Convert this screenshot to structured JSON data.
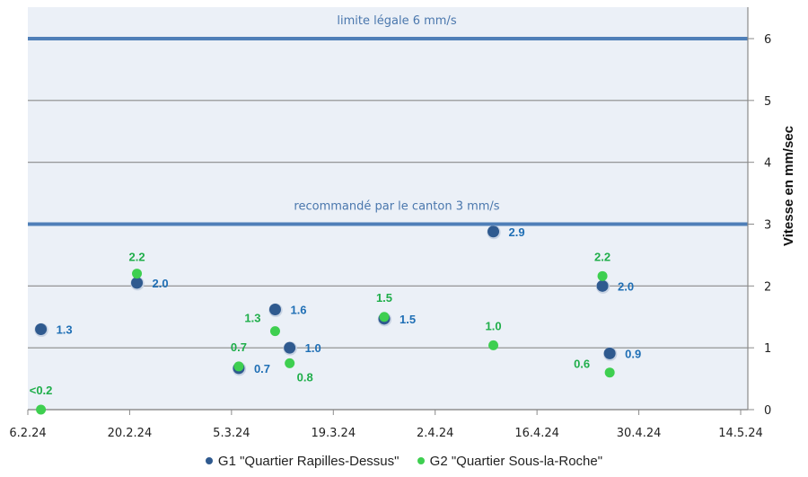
{
  "chart_data": {
    "type": "scatter",
    "title": "",
    "xlabel": "",
    "ylabel": "Vitesse en mm/sec",
    "ylim": [
      0,
      6.5
    ],
    "y_ticks": [
      "0",
      "1",
      "2",
      "3",
      "4",
      "5",
      "6"
    ],
    "x_ticks": [
      "6.2.24",
      "20.2.24",
      "5.3.24",
      "19.3.24",
      "2.4.24",
      "16.4.24",
      "30.4.24",
      "14.5.24"
    ],
    "x_range_days": [
      0,
      99
    ],
    "x_origin_date": "6.2.24",
    "grid": true,
    "legend_position": "bottom",
    "reference_lines": [
      {
        "value": 6,
        "label": "limite légale 6 mm/s"
      },
      {
        "value": 3,
        "label": "recommandé par le canton 3 mm/s"
      }
    ],
    "series": [
      {
        "name": "G1 \"Quartier Rapilles-Dessus\"",
        "color": "#2f5a8f",
        "label_color": "#1f6fb5",
        "points": [
          {
            "x_day": 1.8,
            "date": "8.2.24",
            "y": 1.3,
            "label": "1.3"
          },
          {
            "x_day": 15,
            "date": "21.2.24",
            "y": 2.05,
            "label": "2.0"
          },
          {
            "x_day": 29,
            "date": "6.3.24",
            "y": 0.67,
            "label": "0.7"
          },
          {
            "x_day": 34,
            "date": "11.3.24",
            "y": 1.62,
            "label": "1.6"
          },
          {
            "x_day": 36,
            "date": "13.3.24",
            "y": 1.0,
            "label": "1.0"
          },
          {
            "x_day": 49,
            "date": "26.3.24",
            "y": 1.47,
            "label": "1.5"
          },
          {
            "x_day": 64,
            "date": "10.4.24",
            "y": 2.88,
            "label": "2.9"
          },
          {
            "x_day": 79,
            "date": "25.4.24",
            "y": 2.0,
            "label": "2.0"
          },
          {
            "x_day": 80,
            "date": "26.4.24",
            "y": 0.91,
            "label": "0.9"
          }
        ]
      },
      {
        "name": "G2 \"Quartier Sous-la-Roche\"",
        "color": "#3ecf50",
        "label_color": "#1fae4a",
        "points": [
          {
            "x_day": 1.8,
            "date": "8.2.24",
            "y": 0.0,
            "label": "<0.2"
          },
          {
            "x_day": 15,
            "date": "21.2.24",
            "y": 2.2,
            "label": "2.2"
          },
          {
            "x_day": 29,
            "date": "6.3.24",
            "y": 0.7,
            "label": "0.7"
          },
          {
            "x_day": 34,
            "date": "11.3.24",
            "y": 1.27,
            "label": "1.3"
          },
          {
            "x_day": 36,
            "date": "13.3.24",
            "y": 0.75,
            "label": "0.8"
          },
          {
            "x_day": 49,
            "date": "26.3.24",
            "y": 1.5,
            "label": "1.5"
          },
          {
            "x_day": 64,
            "date": "10.4.24",
            "y": 1.04,
            "label": "1.0"
          },
          {
            "x_day": 79,
            "date": "25.4.24",
            "y": 2.16,
            "label": "2.2"
          },
          {
            "x_day": 80,
            "date": "26.4.24",
            "y": 0.6,
            "label": "0.6"
          }
        ]
      }
    ]
  }
}
